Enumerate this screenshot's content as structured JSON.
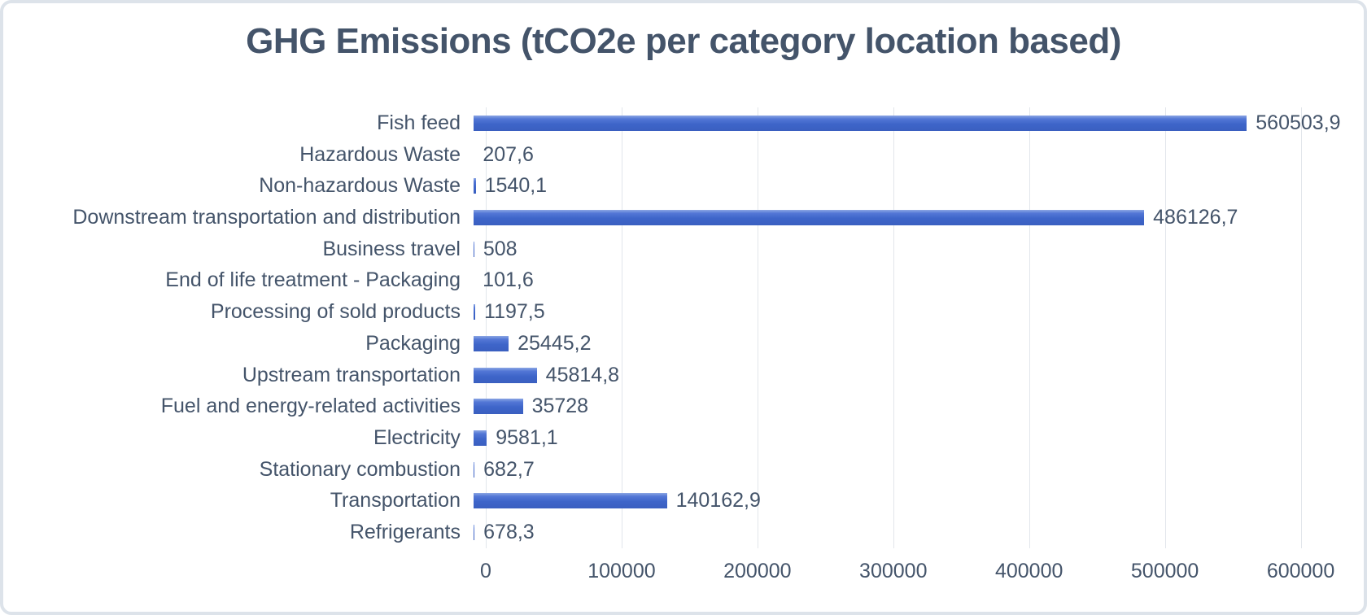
{
  "card": {
    "background": "#ffffff",
    "border_color": "#dde3ea"
  },
  "chart_data": {
    "type": "bar",
    "orientation": "horizontal",
    "title": "GHG Emissions (tCO2e per category location based)",
    "categories": [
      "Fish feed",
      "Hazardous Waste",
      "Non-hazardous Waste",
      "Downstream transportation and distribution",
      "Business travel",
      "End of life treatment - Packaging",
      "Processing of sold products",
      "Packaging",
      "Upstream transportation",
      "Fuel and energy-related activities",
      "Electricity",
      "Stationary combustion",
      "Transportation",
      "Refrigerants"
    ],
    "values": [
      560503.9,
      207.6,
      1540.1,
      486126.7,
      508,
      101.6,
      1197.5,
      25445.2,
      45814.8,
      35728,
      9581.1,
      682.7,
      140162.9,
      678.3
    ],
    "value_labels": [
      "560503,9",
      "207,6",
      "1540,1",
      "486126,7",
      "508",
      "101,6",
      "1197,5",
      "25445,2",
      "45814,8",
      "35728",
      "9581,1",
      "682,7",
      "140162,9",
      "678,3"
    ],
    "xlabel": "",
    "ylabel": "",
    "xlim": [
      0,
      650000
    ],
    "x_ticks": [
      0,
      100000,
      200000,
      300000,
      400000,
      500000,
      600000
    ],
    "x_tick_labels": [
      "0",
      "100000",
      "200000",
      "300000",
      "400000",
      "500000",
      "600000"
    ],
    "grid": true,
    "legend": false,
    "data_labels_position": "outside-end",
    "bar_color": "#3E65C9",
    "bar_gradient_top": "#8BA5E3",
    "gridline_color": "#E2E6EB",
    "text_color": "#44546A",
    "title_color": "#44546A"
  }
}
